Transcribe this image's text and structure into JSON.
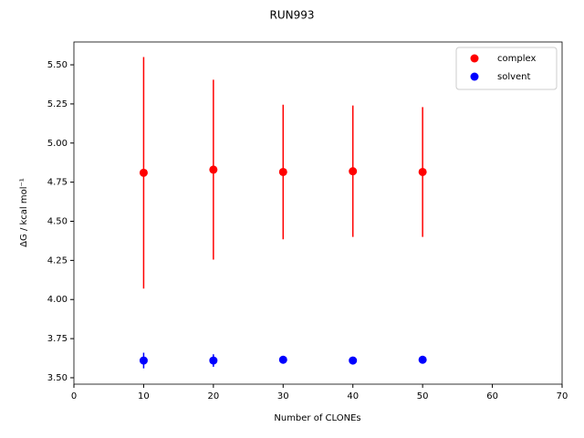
{
  "chart_data": {
    "type": "scatter",
    "title": "RUN993",
    "xlabel": "Number of CLONEs",
    "ylabel": "ΔG / kcal mol⁻¹",
    "x": [
      10,
      20,
      30,
      40,
      50
    ],
    "series": [
      {
        "name": "complex",
        "color": "#ff0000",
        "values": [
          4.81,
          4.83,
          4.815,
          4.82,
          4.815
        ],
        "errors": [
          0.74,
          0.575,
          0.43,
          0.42,
          0.415
        ]
      },
      {
        "name": "solvent",
        "color": "#0000ff",
        "values": [
          3.61,
          3.61,
          3.615,
          3.61,
          3.615
        ],
        "errors": [
          0.05,
          0.04,
          0.015,
          0.01,
          0.01
        ]
      }
    ],
    "xlim": [
      0,
      70
    ],
    "xticks": [
      0,
      10,
      20,
      30,
      40,
      50,
      60,
      70
    ],
    "ylim": [
      3.459,
      5.646
    ],
    "yticks": [
      {
        "value": 3.5,
        "label": "3.50"
      },
      3.75,
      {
        "value": 4,
        "label": "4.00"
      },
      4.25,
      {
        "value": 4.5,
        "label": "4.50"
      },
      4.75,
      {
        "value": 5,
        "label": "5.00"
      },
      5.25,
      {
        "value": 5.5,
        "label": "5.50"
      }
    ],
    "legend": "upper right",
    "grid": false
  }
}
